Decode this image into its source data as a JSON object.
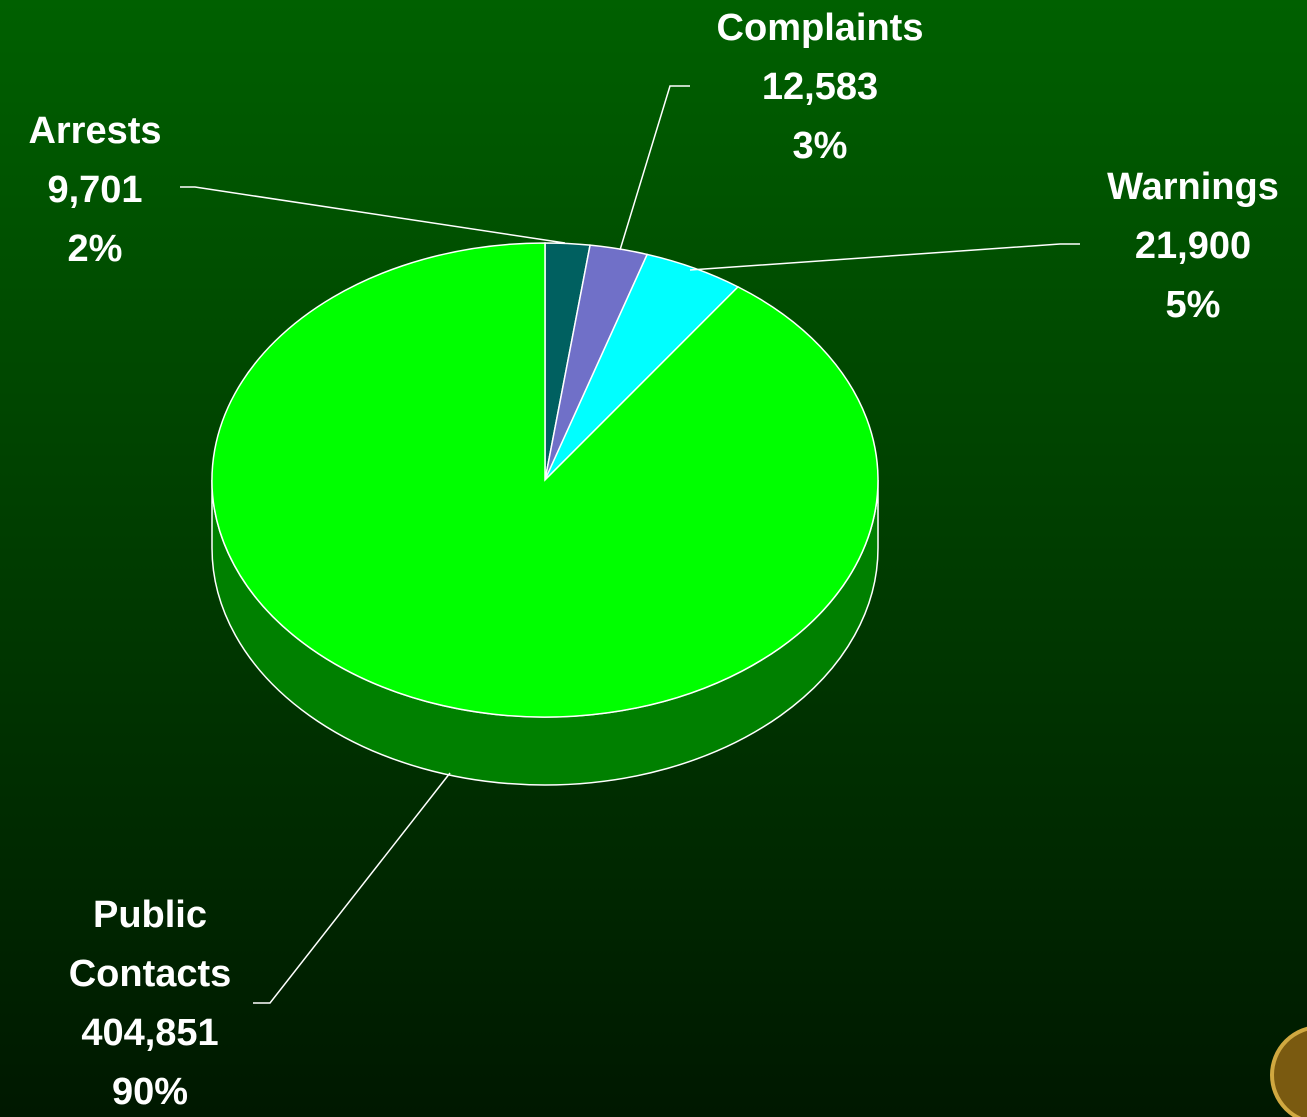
{
  "chart_data": {
    "type": "pie",
    "categories": [
      "Arrests",
      "Complaints",
      "Warnings",
      "Public Contacts"
    ],
    "values": [
      9701,
      12583,
      21900,
      404851
    ],
    "value_labels": [
      "9,701",
      "12,583",
      "21,900",
      "404,851"
    ],
    "percent_labels": [
      "2%",
      "3%",
      "5%",
      "90%"
    ],
    "colors": [
      "#006060",
      "#7070c8",
      "#00ffff",
      "#00ff00"
    ],
    "three_d": true
  }
}
